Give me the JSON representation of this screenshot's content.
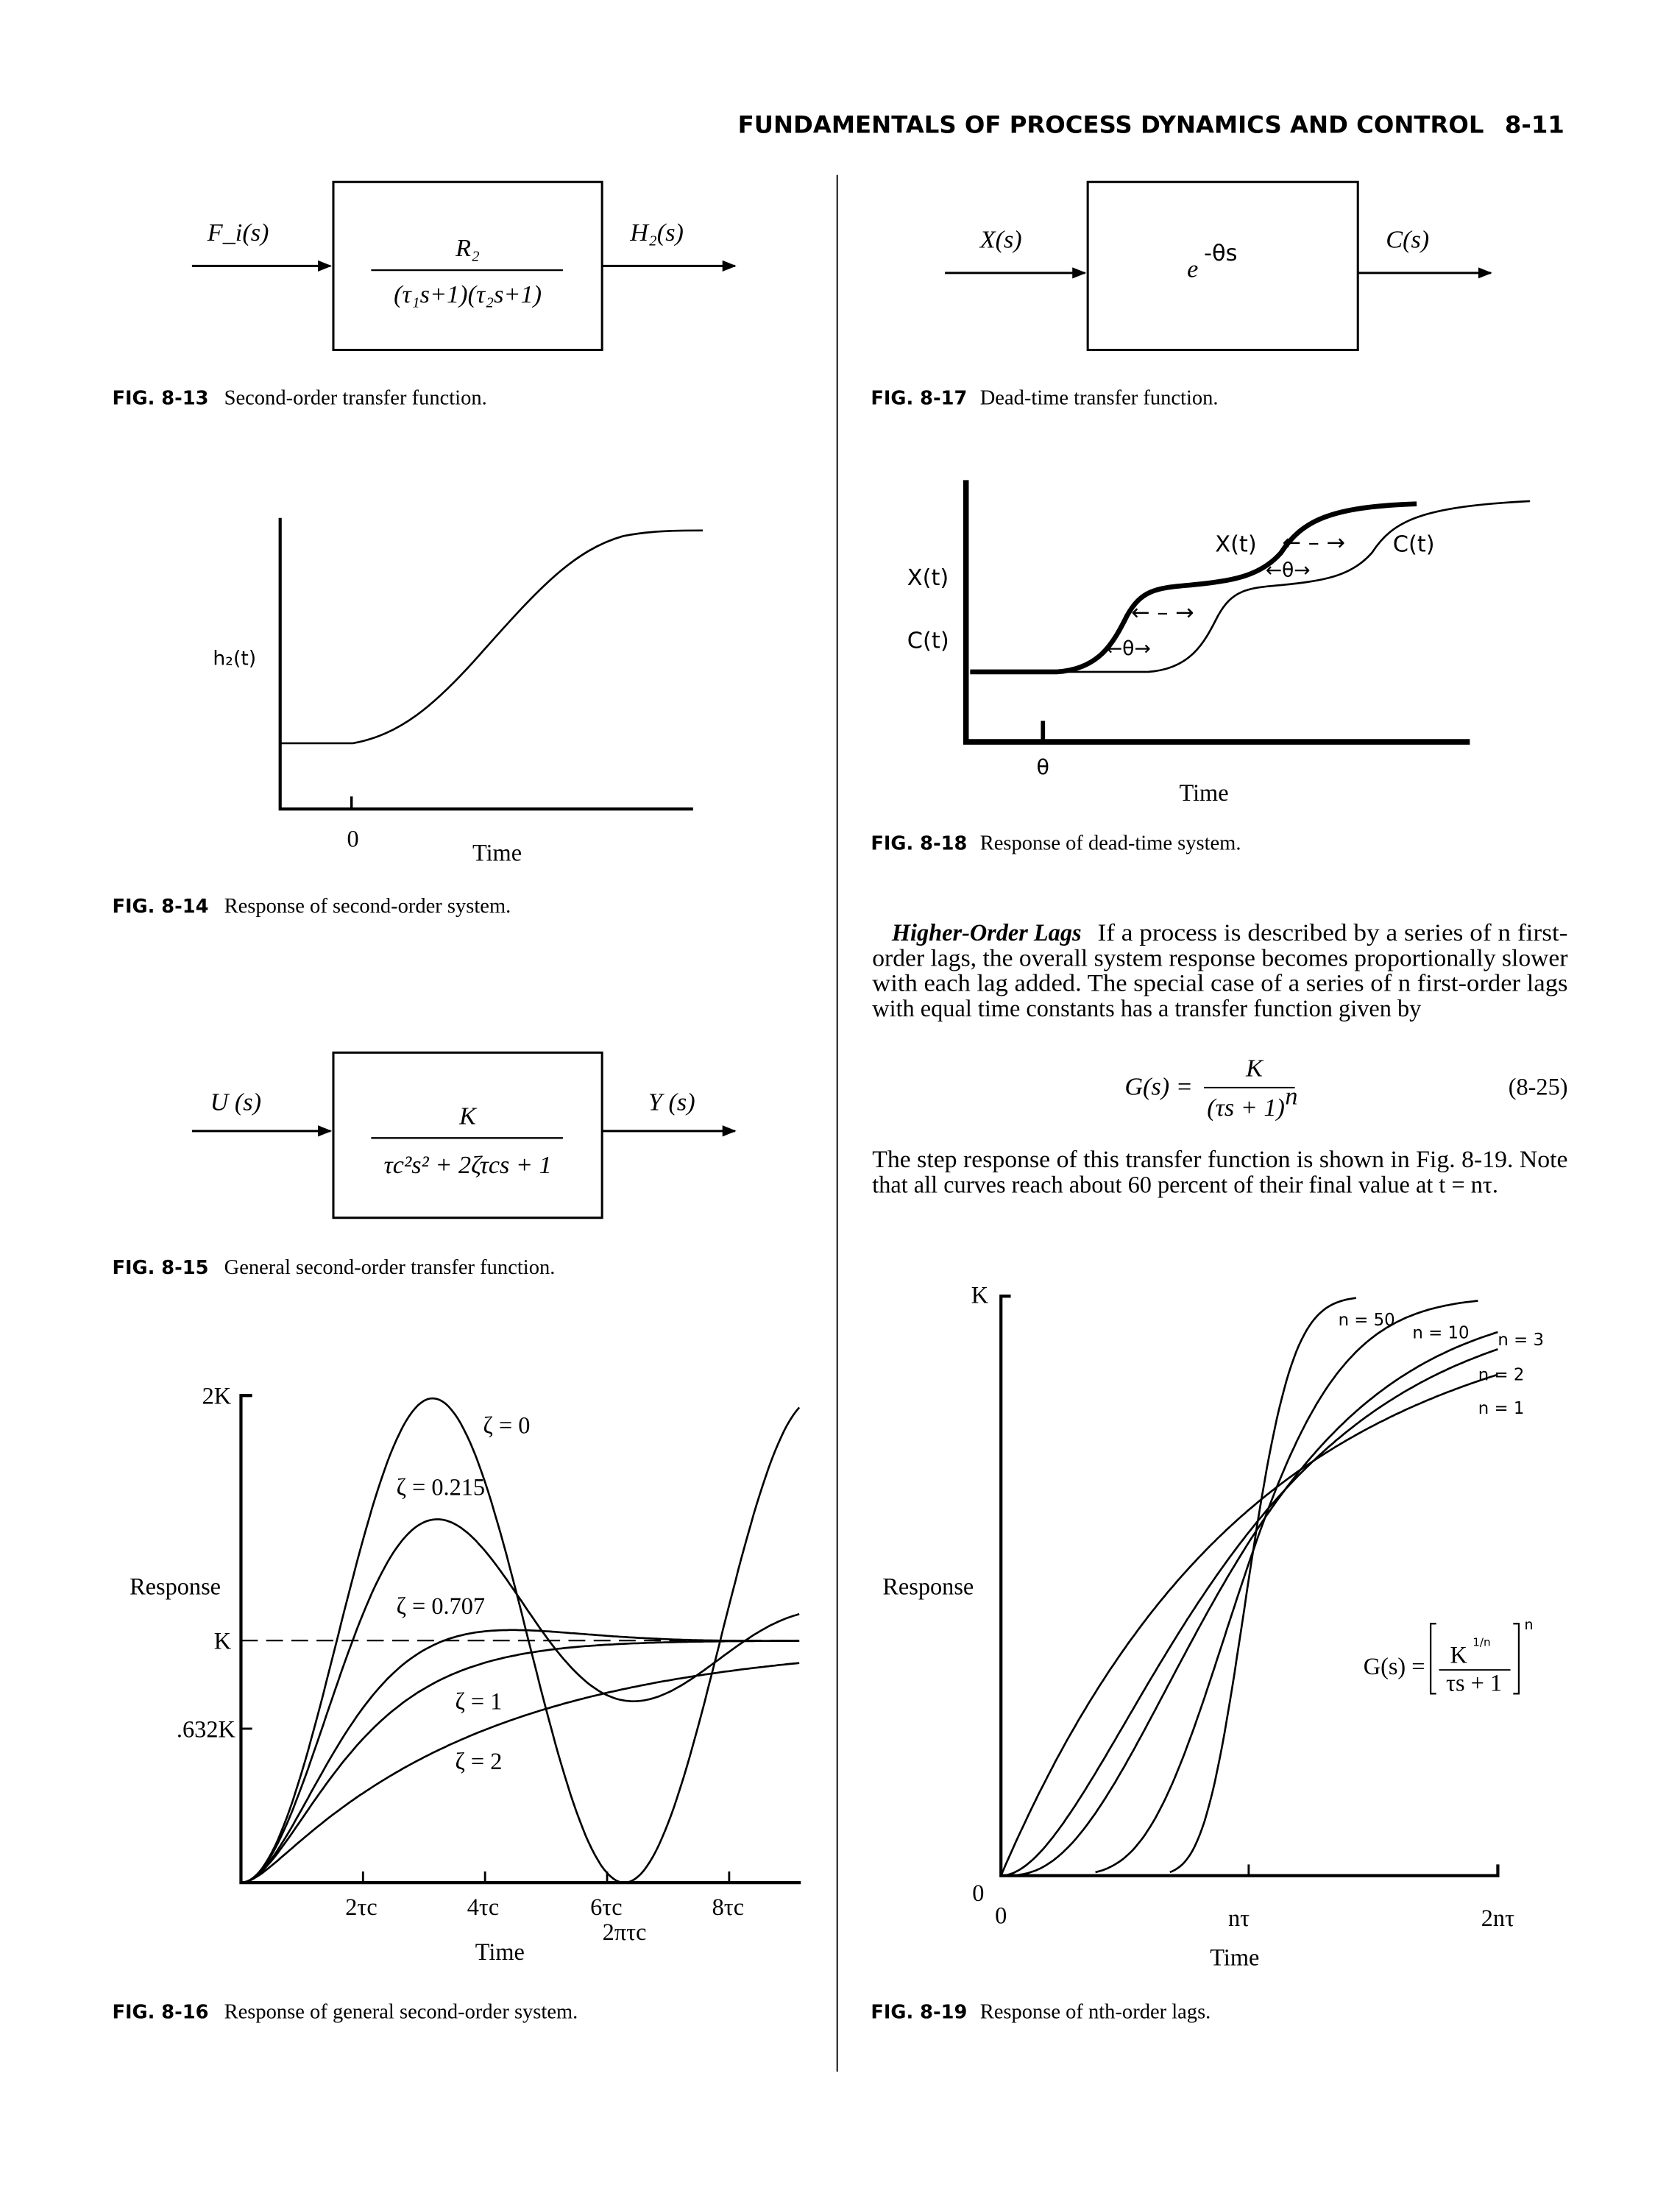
{
  "header": {
    "title": "FUNDAMENTALS OF PROCESS DYNAMICS AND CONTROL",
    "page": "8-11"
  },
  "fig13": {
    "input": "F_i(s)",
    "output": "H₂(s)",
    "numerator": "R₂",
    "denominator": "(τ₁s+1)(τ₂s+1)",
    "number": "FIG. 8-13",
    "caption": "Second-order transfer function."
  },
  "fig14": {
    "ylabel": "h₂(t)",
    "xtick": "0",
    "xlabel": "Time",
    "number": "FIG. 8-14",
    "caption": "Response of second-order system."
  },
  "fig15": {
    "input": "U (s)",
    "output": "Y (s)",
    "numerator": "K",
    "denominator": "τc²s² + 2ζτcs + 1",
    "number": "FIG. 8-15",
    "caption": "General second-order transfer function."
  },
  "fig16": {
    "ylabel": "Response",
    "xlabel": "Time",
    "yticks": [
      "2K",
      "K",
      ".632K"
    ],
    "xticks": [
      "2τc",
      "4τc",
      "6τc",
      "8τc"
    ],
    "extra_xtick": "2πτc",
    "zetas": [
      0,
      0.215,
      0.707,
      1,
      2
    ],
    "curve_labels": [
      "ζ = 0",
      "ζ = 0.215",
      "ζ = 0.707",
      "ζ = 1",
      "ζ = 2"
    ],
    "number": "FIG. 8-16",
    "caption": "Response of general second-order system."
  },
  "fig17": {
    "input": "X(s)",
    "output": "C(s)",
    "block": "e",
    "exponent": "-θs",
    "number": "FIG. 8-17",
    "caption": "Dead-time transfer function."
  },
  "fig18": {
    "ylabel1": "X(t)",
    "ylabel2": "C(t)",
    "xtick": "θ",
    "xlabel": "Time",
    "curve1": "X(t)",
    "curve2": "C(t)",
    "arrow_dash": "← – →",
    "arrow_theta": "←θ→",
    "number": "FIG. 8-18",
    "caption": "Response of dead-time system."
  },
  "text": {
    "heading": "Higher-Order Lags",
    "para1": [
      "If a process is described by a series of n first-",
      "order lags, the overall system response becomes proportionally slower",
      "with each lag added. The special case of a series of n first-order lags",
      "with equal time constants has a transfer function given by"
    ],
    "eq_lhs": "G(s) =",
    "eq_num": "K",
    "eq_den": "(τs + 1)",
    "eq_exp": "n",
    "eq_no": "(8-25)",
    "para2": [
      "The step response of this transfer function is shown in Fig. 8-19. Note",
      "that all curves reach about 60 percent of their final value at t =  nτ."
    ]
  },
  "fig19": {
    "ylabel": "Response",
    "ytop": "K",
    "yzero": "0",
    "xticks": [
      "0",
      "nτ",
      "2nτ"
    ],
    "xlabel": "Time",
    "orders": [
      1,
      2,
      3,
      10,
      50
    ],
    "curve_labels": [
      "n = 1",
      "n = 2",
      "n = 3",
      "n = 10",
      "n = 50"
    ],
    "formula_lhs": "G(s) =",
    "formula_num": "K",
    "formula_num_exp": "1/n",
    "formula_den": "τs + 1",
    "formula_exp": "n",
    "number": "FIG. 8-19",
    "caption": "Response of nth-order lags."
  }
}
